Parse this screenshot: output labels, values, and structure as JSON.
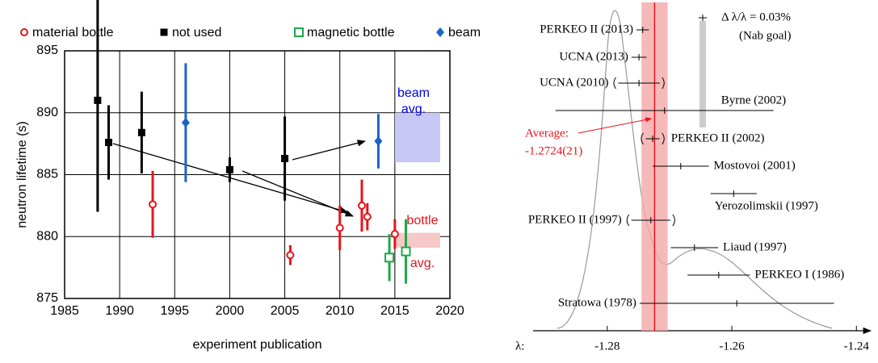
{
  "chart_data": [
    {
      "type": "scatter",
      "xlabel": "experiment publication",
      "ylabel": "neutron lifetime (s)",
      "xlim": [
        1985,
        2020
      ],
      "ylim": [
        875,
        895
      ],
      "xticks": [
        1985,
        1990,
        1995,
        2000,
        2005,
        2010,
        2015,
        2020
      ],
      "yticks": [
        875,
        880,
        885,
        890,
        895
      ],
      "grid": true,
      "series": [
        {
          "name": "material bottle",
          "color": "#e8141c",
          "marker": "open-circle",
          "x": [
            1993,
            2005.5,
            2010,
            2012,
            2012.5,
            2015
          ],
          "values": [
            882.6,
            878.5,
            880.7,
            882.5,
            881.6,
            880.2
          ],
          "errors": [
            2.7,
            0.8,
            1.8,
            2.1,
            1.1,
            1.2
          ]
        },
        {
          "name": "not used",
          "color": "#000000",
          "marker": "square",
          "x": [
            1988,
            1989,
            1992,
            2000,
            2005
          ],
          "values": [
            891,
            887.6,
            888.4,
            885.4,
            886.3
          ],
          "errors": [
            9,
            3,
            3.3,
            1,
            3.4
          ]
        },
        {
          "name": "magnetic bottle",
          "color": "#1fa84a",
          "marker": "open-square",
          "x": [
            2014.5,
            2016
          ],
          "values": [
            878.3,
            878.8
          ],
          "errors": [
            1.9,
            2.6
          ]
        },
        {
          "name": "beam",
          "color": "#1a64c8",
          "marker": "diamond",
          "x": [
            1996,
            2013.5
          ],
          "values": [
            889.2,
            887.7
          ],
          "errors": [
            4.8,
            2.2
          ]
        }
      ],
      "bands": [
        {
          "label": [
            "beam",
            "avg."
          ],
          "color": "#0000e0",
          "fill": "#c8c8f4",
          "y": [
            886,
            890
          ]
        },
        {
          "label": [
            "bottle",
            "avg."
          ],
          "color": "#e8141c",
          "fill": "#f8c8c8",
          "y": [
            879.1,
            880.3
          ]
        }
      ]
    },
    {
      "type": "errorbar-h",
      "xlabel": "λ:",
      "xlim": [
        -1.2919,
        -1.2377
      ],
      "xticks": [
        -1.28,
        -1.26,
        -1.24
      ],
      "labels": [
        "PERKEO II (2013)",
        "UCNA (2013)",
        "UCNA (2010)",
        "Byrne (2002)",
        "PERKEO II (2002)",
        "Mostovoi (2001)",
        "Yerozolimskii (1997)",
        "PERKEO II (1997)",
        "Liaud (1997)",
        "PERKEO I (1986)",
        "Stratowa (1978)"
      ],
      "values": [
        -1.2743,
        -1.2749,
        -1.2749,
        -1.2708,
        -1.2727,
        -1.2682,
        -1.2597,
        -1.273,
        -1.266,
        -1.2621,
        -1.2592
      ],
      "errors": [
        0.001,
        0.0012,
        0.0041,
        0.0175,
        0.0019,
        0.0045,
        0.0037,
        0.0039,
        0.0038,
        0.005,
        0.0156
      ],
      "bracketed": [
        false,
        false,
        true,
        false,
        true,
        false,
        false,
        true,
        false,
        false,
        false
      ],
      "color": "#000000",
      "average": {
        "label": "Average:",
        "value": -1.2724,
        "error": 0.0021,
        "value_label": "-1.2724(21)",
        "color": "#e8141c",
        "fill": "#f4a8a8"
      },
      "goal": {
        "text": "Δ λ/λ = 0.03%",
        "note": "(Nab goal)"
      }
    }
  ]
}
